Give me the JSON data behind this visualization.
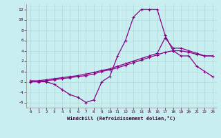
{
  "xlabel": "Windchill (Refroidissement éolien,°C)",
  "bg_color": "#c8eef0",
  "grid_color": "#b0d8dc",
  "line_color": "#880088",
  "xlim": [
    -0.5,
    23.5
  ],
  "ylim": [
    -7,
    13
  ],
  "xticks": [
    0,
    1,
    2,
    3,
    4,
    5,
    6,
    7,
    8,
    9,
    10,
    11,
    12,
    13,
    14,
    15,
    16,
    17,
    18,
    19,
    20,
    21,
    22,
    23
  ],
  "yticks": [
    -6,
    -4,
    -2,
    0,
    2,
    4,
    6,
    8,
    10,
    12
  ],
  "line1_x": [
    0,
    1,
    2,
    3,
    4,
    5,
    6,
    7,
    8,
    9,
    10,
    11,
    12,
    13,
    14,
    15,
    16,
    17,
    18,
    19,
    20,
    21,
    22,
    23
  ],
  "line1_y": [
    -2,
    -2,
    -2,
    -2.5,
    -3.5,
    -4.5,
    -5,
    -6,
    -5.5,
    -2,
    -1.0,
    3,
    6,
    10.5,
    12,
    12,
    12,
    7,
    4,
    3,
    3,
    1,
    0,
    -1.0
  ],
  "line2_x": [
    0,
    1,
    2,
    3,
    4,
    5,
    6,
    7,
    8,
    9,
    10,
    11,
    12,
    13,
    14,
    15,
    16,
    17,
    18,
    19,
    20,
    21,
    22,
    23
  ],
  "line2_y": [
    -1.8,
    -1.8,
    -1.6,
    -1.4,
    -1.2,
    -1.0,
    -0.8,
    -0.5,
    -0.2,
    0.2,
    0.5,
    1.0,
    1.5,
    2.0,
    2.5,
    3.0,
    3.5,
    6.5,
    4.5,
    4.5,
    4.0,
    3.5,
    3.0,
    3.0
  ],
  "line3_x": [
    0,
    1,
    2,
    3,
    4,
    5,
    6,
    7,
    8,
    9,
    10,
    11,
    12,
    13,
    14,
    15,
    16,
    17,
    18,
    19,
    20,
    21,
    22,
    23
  ],
  "line3_y": [
    -2.0,
    -2.0,
    -1.8,
    -1.6,
    -1.4,
    -1.2,
    -1.0,
    -0.8,
    -0.5,
    0.0,
    0.3,
    0.7,
    1.2,
    1.7,
    2.2,
    2.7,
    3.2,
    3.7,
    4.0,
    4.0,
    3.7,
    3.3,
    3.0,
    3.0
  ]
}
